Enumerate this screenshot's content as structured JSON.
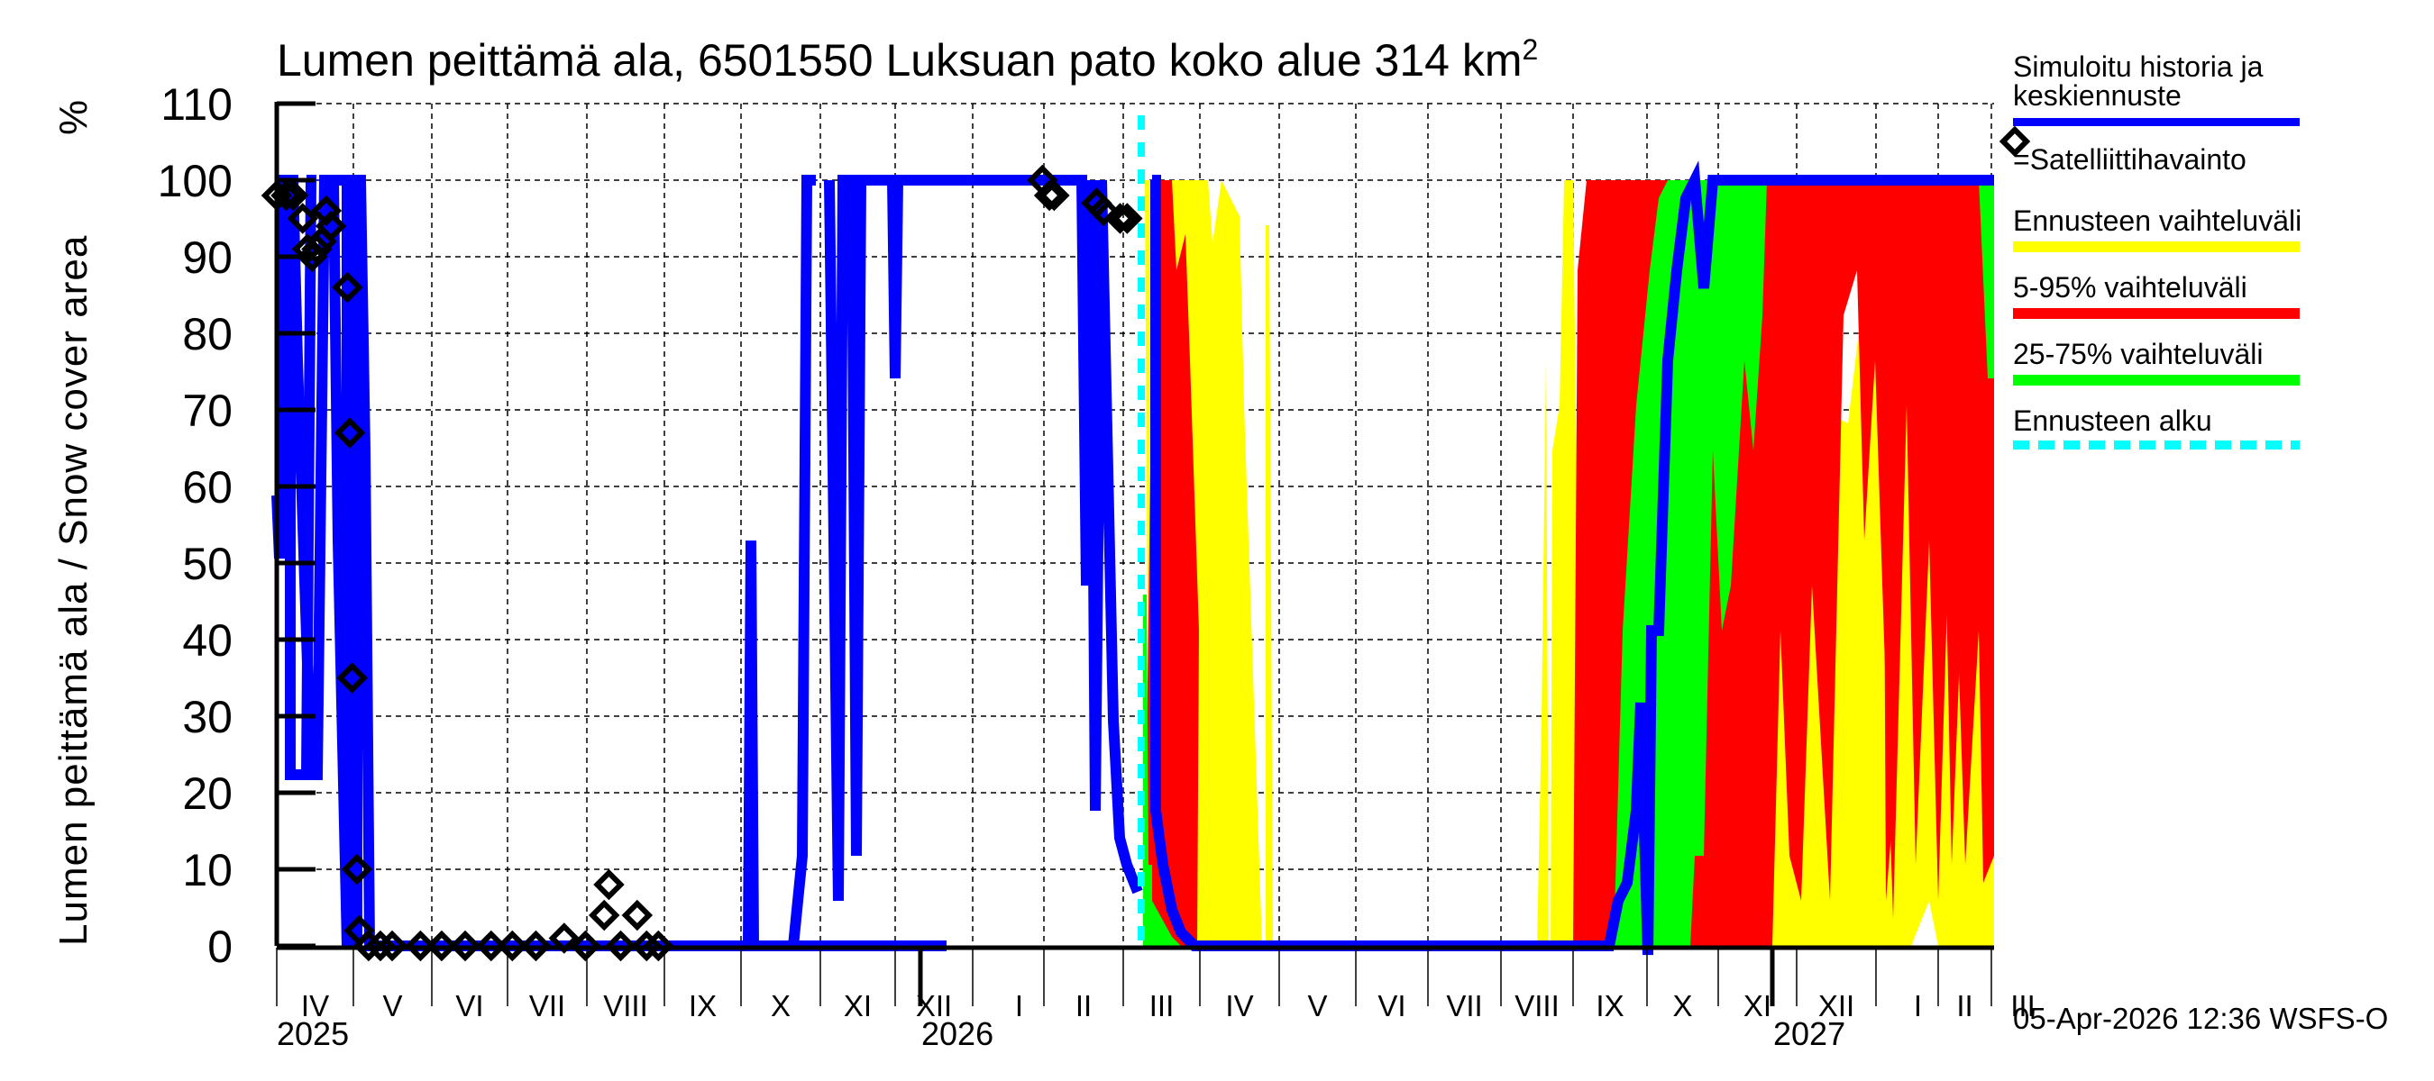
{
  "chart_data": {
    "type": "area",
    "title": "Lumen peittämä ala, 6501550 Luksuan pato koko alue 314 km²",
    "title_parts": {
      "main": "Lumen peittämä ala, 6501550 Luksuan pato koko alue 314 km",
      "sup": "2"
    },
    "ylabel": "Lumen peittämä ala / Snow cover area",
    "yunit": "%",
    "ylim": [
      0,
      110
    ],
    "yticks": [
      "0",
      "10",
      "20",
      "30",
      "40",
      "50",
      "60",
      "70",
      "80",
      "90",
      "100",
      "110"
    ],
    "grid": true,
    "xaxis": {
      "months": [
        {
          "label": "IV"
        },
        {
          "label": "V"
        },
        {
          "label": "VI"
        },
        {
          "label": "VII"
        },
        {
          "label": "VIII"
        },
        {
          "label": "IX"
        },
        {
          "label": "X"
        },
        {
          "label": "XI"
        },
        {
          "label": "XII"
        },
        {
          "label": "I"
        },
        {
          "label": "II"
        },
        {
          "label": "III"
        },
        {
          "label": "IV"
        },
        {
          "label": "V"
        },
        {
          "label": "VI"
        },
        {
          "label": "VII"
        },
        {
          "label": "VIII"
        },
        {
          "label": "IX"
        },
        {
          "label": "X"
        },
        {
          "label": "XI"
        },
        {
          "label": "XII"
        },
        {
          "label": "I"
        },
        {
          "label": "II"
        },
        {
          "label": "III"
        }
      ],
      "years": [
        "2025",
        "2026",
        "2027"
      ],
      "range": [
        "2025-04-01",
        "2027-03-31"
      ]
    },
    "forecast_start": "2026-04-05",
    "series": [
      {
        "name": "Simuloitu historia ja keskiennuste",
        "color": "#0000ff",
        "type": "line",
        "points": [
          [
            "2025-04-01",
            59
          ],
          [
            "2025-04-03",
            50
          ],
          [
            "2025-04-06",
            100
          ],
          [
            "2025-04-15",
            100
          ],
          [
            "2025-04-20",
            20
          ],
          [
            "2025-04-25",
            20
          ],
          [
            "2025-04-28",
            100
          ],
          [
            "2025-05-02",
            0
          ],
          [
            "2025-05-05",
            100
          ],
          [
            "2025-05-10",
            70
          ],
          [
            "2025-05-14",
            0
          ],
          [
            "2025-10-15",
            0
          ],
          [
            "2025-10-17",
            53
          ],
          [
            "2025-10-20",
            0
          ],
          [
            "2025-10-30",
            0
          ],
          [
            "2025-11-05",
            100
          ],
          [
            "2025-11-20",
            100
          ],
          [
            "2025-11-22",
            14
          ],
          [
            "2025-11-25",
            100
          ],
          [
            "2025-12-05",
            100
          ],
          [
            "2025-12-07",
            77
          ],
          [
            "2025-12-09",
            100
          ],
          [
            "2026-03-01",
            100
          ],
          [
            "2026-03-05",
            47
          ],
          [
            "2026-03-10",
            100
          ],
          [
            "2026-03-20",
            30
          ],
          [
            "2026-03-28",
            18
          ],
          [
            "2026-04-02",
            100
          ],
          [
            "2026-04-05",
            100
          ],
          [
            "2026-04-06",
            14
          ],
          [
            "2026-04-20",
            5
          ],
          [
            "2026-05-01",
            0
          ],
          [
            "2026-10-25",
            0
          ],
          [
            "2026-11-01",
            10
          ],
          [
            "2026-11-05",
            30
          ],
          [
            "2026-11-10",
            45
          ],
          [
            "2026-11-15",
            85
          ],
          [
            "2026-11-25",
            100
          ],
          [
            "2027-03-31",
            100
          ]
        ]
      },
      {
        "name": "Ennusteen vaihteluväli",
        "color": "#ffff00",
        "type": "band",
        "range": [
          [
            "2026-04-05",
            0,
            100
          ],
          [
            "2026-05-15",
            0,
            100
          ],
          [
            "2026-06-01",
            0,
            0
          ],
          [
            "2026-09-20",
            0,
            0
          ],
          [
            "2026-10-01",
            0,
            100
          ],
          [
            "2027-03-31",
            0,
            100
          ]
        ]
      },
      {
        "name": "5-95% vaihteluväli",
        "color": "#ff0000",
        "type": "band",
        "range": [
          [
            "2026-04-05",
            5,
            12
          ],
          [
            "2026-04-10",
            0,
            100
          ],
          [
            "2026-05-10",
            0,
            100
          ],
          [
            "2026-05-15",
            0,
            0
          ],
          [
            "2026-10-15",
            0,
            100
          ],
          [
            "2027-03-31",
            10,
            100
          ]
        ]
      },
      {
        "name": "25-75% vaihteluväli",
        "color": "#00ff00",
        "type": "band",
        "range": [
          [
            "2026-04-05",
            5,
            20
          ],
          [
            "2026-04-25",
            0,
            5
          ],
          [
            "2026-10-25",
            0,
            60
          ],
          [
            "2026-11-20",
            20,
            100
          ],
          [
            "2026-12-20",
            50,
            100
          ],
          [
            "2026-12-31",
            100,
            100
          ]
        ]
      },
      {
        "name": "Satelliittihavainto",
        "color": "#000000",
        "type": "scatter",
        "marker": "diamond",
        "points": [
          [
            "2025-04-01",
            98
          ],
          [
            "2025-04-05",
            98
          ],
          [
            "2025-04-08",
            98
          ],
          [
            "2025-04-12",
            95
          ],
          [
            "2025-04-14",
            91
          ],
          [
            "2025-04-16",
            90
          ],
          [
            "2025-04-18",
            91
          ],
          [
            "2025-04-20",
            92
          ],
          [
            "2025-04-22",
            96
          ],
          [
            "2025-04-24",
            94
          ],
          [
            "2025-05-01",
            86
          ],
          [
            "2025-05-02",
            67
          ],
          [
            "2025-05-03",
            35
          ],
          [
            "2025-05-05",
            10
          ],
          [
            "2025-05-06",
            2
          ],
          [
            "2025-05-10",
            0
          ],
          [
            "2025-05-15",
            0
          ],
          [
            "2025-05-20",
            0
          ],
          [
            "2025-06-01",
            0
          ],
          [
            "2025-06-10",
            0
          ],
          [
            "2025-06-20",
            0
          ],
          [
            "2025-07-01",
            0
          ],
          [
            "2025-07-10",
            0
          ],
          [
            "2025-07-20",
            0
          ],
          [
            "2025-08-01",
            1
          ],
          [
            "2025-08-10",
            0
          ],
          [
            "2025-08-18",
            4
          ],
          [
            "2025-08-20",
            8
          ],
          [
            "2025-08-25",
            0
          ],
          [
            "2025-09-01",
            4
          ],
          [
            "2025-09-05",
            0
          ],
          [
            "2025-09-10",
            0
          ],
          [
            "2026-02-20",
            100
          ],
          [
            "2026-02-23",
            98
          ],
          [
            "2026-02-25",
            98
          ],
          [
            "2026-03-15",
            97
          ],
          [
            "2026-03-18",
            96
          ],
          [
            "2026-03-25",
            95
          ],
          [
            "2026-03-28",
            95
          ]
        ]
      }
    ]
  },
  "legend": {
    "items": [
      {
        "label_line1": "Simuloitu historia ja",
        "label_line2": "keskiennuste",
        "color": "#0000ff",
        "style": "solid"
      },
      {
        "label": "=Satelliittihavainto",
        "marker": "diamond"
      },
      {
        "label": "Ennusteen vaihteluväli",
        "color": "#ffff00",
        "style": "solid"
      },
      {
        "label": "5-95% vaihteluväli",
        "color": "#ff0000",
        "style": "solid"
      },
      {
        "label": "25-75% vaihteluväli",
        "color": "#00ff00",
        "style": "solid"
      },
      {
        "label": "Ennusteen alku",
        "color": "#00ffff",
        "style": "dashed"
      }
    ]
  },
  "footer": {
    "timestamp": "05-Apr-2026 12:36 WSFS-O"
  }
}
